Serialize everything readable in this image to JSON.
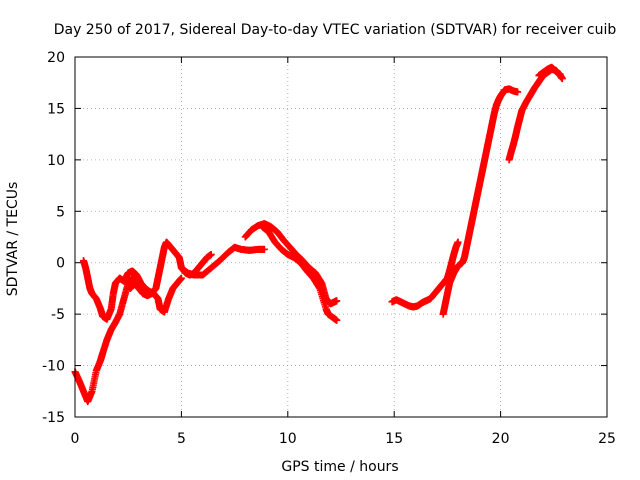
{
  "chart_data": {
    "type": "scatter",
    "title": "Day 250 of 2017, Sidereal Day-to-day VTEC variation (SDTVAR) for receiver cuib",
    "xlabel": "GPS time / hours",
    "ylabel": "SDTVAR / TECUs",
    "xlim": [
      0,
      25
    ],
    "ylim": [
      -15,
      20
    ],
    "xticks": [
      "0",
      "5",
      "10",
      "15",
      "20",
      "25"
    ],
    "yticks": [
      "-15",
      "-10",
      "-5",
      "0",
      "5",
      "10",
      "15",
      "20"
    ],
    "grid": true,
    "marker": "+",
    "color": "#ff0000",
    "series": [
      {
        "name": "seg1",
        "points": [
          [
            0.0,
            -10.6
          ],
          [
            0.2,
            -11.5
          ],
          [
            0.4,
            -12.5
          ],
          [
            0.6,
            -13.5
          ],
          [
            0.8,
            -12.5
          ],
          [
            1.0,
            -10.5
          ],
          [
            1.2,
            -9.5
          ],
          [
            1.3,
            -8.8
          ],
          [
            1.5,
            -7.5
          ],
          [
            1.7,
            -6.5
          ],
          [
            1.9,
            -5.8
          ],
          [
            2.1,
            -5.0
          ],
          [
            2.3,
            -3.5
          ],
          [
            2.5,
            -2.0
          ],
          [
            2.7,
            -1.5
          ],
          [
            2.9,
            -2.0
          ],
          [
            3.1,
            -2.5
          ],
          [
            3.2,
            -3.0
          ]
        ]
      },
      {
        "name": "seg2",
        "points": [
          [
            0.4,
            0.2
          ],
          [
            0.5,
            -0.5
          ],
          [
            0.6,
            -1.5
          ],
          [
            0.7,
            -2.5
          ],
          [
            0.8,
            -3.0
          ],
          [
            1.0,
            -3.5
          ],
          [
            1.2,
            -4.5
          ],
          [
            1.3,
            -5.2
          ],
          [
            1.5,
            -5.5
          ],
          [
            1.7,
            -4.5
          ],
          [
            1.8,
            -3.0
          ],
          [
            1.9,
            -2.0
          ],
          [
            2.1,
            -1.5
          ],
          [
            2.3,
            -1.8
          ],
          [
            2.5,
            -1.0
          ],
          [
            2.7,
            -0.8
          ],
          [
            2.9,
            -1.2
          ],
          [
            3.1,
            -2.0
          ],
          [
            3.3,
            -2.5
          ],
          [
            3.5,
            -2.8
          ],
          [
            3.7,
            -3.0
          ],
          [
            3.9,
            -3.5
          ],
          [
            4.0,
            -4.5
          ],
          [
            4.2,
            -4.8
          ],
          [
            4.4,
            -3.5
          ],
          [
            4.6,
            -2.5
          ],
          [
            4.8,
            -2.0
          ],
          [
            5.0,
            -1.5
          ]
        ]
      },
      {
        "name": "seg3",
        "points": [
          [
            2.6,
            -2.5
          ],
          [
            2.8,
            -2.0
          ],
          [
            3.0,
            -2.5
          ],
          [
            3.2,
            -3.0
          ],
          [
            3.4,
            -3.2
          ],
          [
            3.6,
            -3.0
          ],
          [
            3.8,
            -2.5
          ],
          [
            3.9,
            -1.5
          ],
          [
            4.0,
            -0.5
          ],
          [
            4.1,
            0.5
          ],
          [
            4.2,
            1.5
          ],
          [
            4.3,
            2.0
          ],
          [
            4.5,
            1.5
          ],
          [
            4.7,
            1.0
          ],
          [
            4.9,
            0.5
          ],
          [
            5.0,
            -0.5
          ],
          [
            5.2,
            -1.0
          ],
          [
            5.4,
            -1.2
          ],
          [
            5.6,
            -1.0
          ],
          [
            5.8,
            -0.5
          ],
          [
            6.0,
            0.0
          ],
          [
            6.2,
            0.5
          ],
          [
            6.4,
            0.8
          ]
        ]
      },
      {
        "name": "seg4",
        "points": [
          [
            5.0,
            -0.5
          ],
          [
            5.3,
            -1.0
          ],
          [
            5.6,
            -1.2
          ],
          [
            6.0,
            -1.2
          ],
          [
            6.4,
            -0.5
          ],
          [
            6.8,
            0.2
          ],
          [
            7.2,
            1.0
          ],
          [
            7.5,
            1.5
          ],
          [
            7.8,
            1.3
          ],
          [
            8.2,
            1.2
          ],
          [
            8.6,
            1.3
          ],
          [
            8.9,
            1.3
          ]
        ]
      },
      {
        "name": "seg5",
        "points": [
          [
            8.0,
            2.5
          ],
          [
            8.3,
            3.2
          ],
          [
            8.6,
            3.6
          ],
          [
            8.9,
            3.8
          ],
          [
            9.2,
            3.5
          ],
          [
            9.5,
            3.0
          ],
          [
            9.8,
            2.2
          ],
          [
            10.1,
            1.5
          ],
          [
            10.4,
            0.8
          ],
          [
            10.7,
            0.2
          ],
          [
            11.0,
            -0.5
          ],
          [
            11.3,
            -1.0
          ],
          [
            11.6,
            -2.0
          ],
          [
            11.8,
            -3.5
          ],
          [
            12.0,
            -4.0
          ],
          [
            12.2,
            -3.8
          ],
          [
            12.3,
            -3.7
          ]
        ]
      },
      {
        "name": "seg6",
        "points": [
          [
            8.8,
            3.5
          ],
          [
            9.1,
            3.0
          ],
          [
            9.4,
            2.0
          ],
          [
            9.7,
            1.3
          ],
          [
            10.0,
            0.8
          ],
          [
            10.3,
            0.5
          ],
          [
            10.6,
            0.0
          ],
          [
            10.9,
            -0.8
          ],
          [
            11.2,
            -1.5
          ],
          [
            11.5,
            -2.5
          ],
          [
            11.8,
            -4.5
          ],
          [
            11.9,
            -5.0
          ],
          [
            12.1,
            -5.3
          ],
          [
            12.3,
            -5.6
          ]
        ]
      },
      {
        "name": "seg7",
        "points": [
          [
            14.9,
            -3.8
          ],
          [
            15.1,
            -3.6
          ],
          [
            15.3,
            -3.8
          ],
          [
            15.5,
            -4.0
          ],
          [
            15.7,
            -4.2
          ],
          [
            15.9,
            -4.3
          ],
          [
            16.1,
            -4.2
          ],
          [
            16.3,
            -3.9
          ],
          [
            16.5,
            -3.7
          ],
          [
            16.7,
            -3.5
          ],
          [
            16.9,
            -3.0
          ],
          [
            17.1,
            -2.5
          ],
          [
            17.3,
            -2.0
          ],
          [
            17.5,
            -1.5
          ],
          [
            17.6,
            -0.8
          ],
          [
            17.7,
            0.0
          ],
          [
            17.8,
            0.8
          ],
          [
            17.9,
            1.5
          ],
          [
            18.0,
            2.0
          ]
        ]
      },
      {
        "name": "seg8",
        "points": [
          [
            17.3,
            -5.0
          ],
          [
            17.4,
            -4.0
          ],
          [
            17.5,
            -3.0
          ],
          [
            17.6,
            -2.0
          ],
          [
            17.8,
            -1.0
          ],
          [
            18.0,
            -0.3
          ],
          [
            18.2,
            0.0
          ],
          [
            18.3,
            0.5
          ],
          [
            18.4,
            1.5
          ],
          [
            18.5,
            2.5
          ],
          [
            18.6,
            3.5
          ],
          [
            18.7,
            4.5
          ],
          [
            18.8,
            5.5
          ],
          [
            18.9,
            6.5
          ],
          [
            19.0,
            7.5
          ],
          [
            19.1,
            8.5
          ],
          [
            19.2,
            9.5
          ],
          [
            19.3,
            10.5
          ],
          [
            19.4,
            11.5
          ],
          [
            19.5,
            12.5
          ],
          [
            19.6,
            13.5
          ],
          [
            19.7,
            14.5
          ],
          [
            19.8,
            15.3
          ],
          [
            19.9,
            15.8
          ],
          [
            20.0,
            16.2
          ],
          [
            20.1,
            16.5
          ],
          [
            20.2,
            16.8
          ],
          [
            20.4,
            16.9
          ],
          [
            20.6,
            16.7
          ],
          [
            20.8,
            16.6
          ]
        ]
      },
      {
        "name": "seg9",
        "points": [
          [
            20.4,
            10.0
          ],
          [
            20.5,
            10.8
          ],
          [
            20.6,
            11.5
          ],
          [
            20.7,
            12.3
          ],
          [
            20.8,
            13.2
          ],
          [
            20.9,
            14.0
          ],
          [
            21.0,
            14.8
          ],
          [
            21.2,
            15.6
          ],
          [
            21.4,
            16.3
          ],
          [
            21.6,
            17.0
          ],
          [
            21.8,
            17.6
          ],
          [
            22.0,
            18.2
          ],
          [
            22.2,
            18.5
          ],
          [
            22.4,
            18.8
          ],
          [
            22.6,
            18.7
          ],
          [
            22.8,
            18.2
          ],
          [
            22.9,
            17.9
          ]
        ]
      },
      {
        "name": "seg10",
        "points": [
          [
            21.8,
            18.2
          ],
          [
            22.0,
            18.5
          ],
          [
            22.2,
            18.8
          ],
          [
            22.4,
            19.0
          ],
          [
            22.6,
            18.6
          ],
          [
            22.8,
            18.3
          ]
        ]
      }
    ]
  }
}
